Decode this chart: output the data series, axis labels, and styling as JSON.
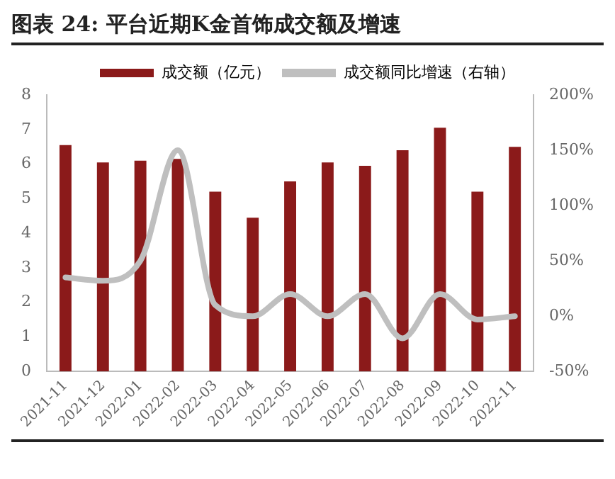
{
  "chart_data": {
    "type": "bar",
    "title": "图表 24: 平台近期K金首饰成交额及增速",
    "categories": [
      "2021-11",
      "2021-12",
      "2022-01",
      "2022-02",
      "2022-03",
      "2022-04",
      "2022-05",
      "2022-06",
      "2022-07",
      "2022-08",
      "2022-09",
      "2022-10",
      "2022-11"
    ],
    "series": [
      {
        "name": "成交额（亿元）",
        "color": "#8b1a1a",
        "values": [
          6.55,
          6.05,
          6.1,
          6.15,
          5.2,
          4.45,
          5.5,
          6.05,
          5.95,
          6.4,
          7.05,
          5.2,
          6.5
        ]
      },
      {
        "name": "成交额同比增速（右轴）",
        "type": "line",
        "axis": "y2",
        "color": "#bfbfbf",
        "values": [
          35,
          32,
          50,
          150,
          10,
          0,
          20,
          0,
          20,
          -20,
          20,
          -3,
          0
        ]
      }
    ],
    "ylim": [
      0,
      8
    ],
    "yticks": [
      0,
      1,
      2,
      3,
      4,
      5,
      6,
      7,
      8
    ],
    "y2lim": [
      -50,
      200
    ],
    "y2ticks": [
      {
        "value": -50,
        "label": "-50%"
      },
      {
        "value": 0,
        "label": "0%"
      },
      {
        "value": 50,
        "label": "50%"
      },
      {
        "value": 100,
        "label": "100%"
      },
      {
        "value": 150,
        "label": "150%"
      },
      {
        "value": 200,
        "label": "200%"
      }
    ],
    "grid": false,
    "legend": "top",
    "marker": "none"
  }
}
